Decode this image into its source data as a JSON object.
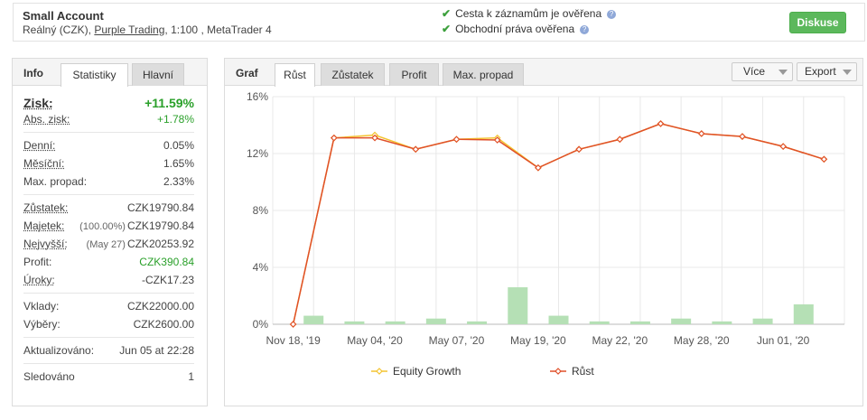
{
  "header": {
    "title": "Small Account",
    "subtitle_prefix": "Reálný (CZK), ",
    "broker": "Purple Trading",
    "subtitle_suffix": ", 1:100 , MetaTrader 4",
    "verif1": "Cesta k záznamům je ověřena",
    "verif2": "Obchodní práva ověřena",
    "discuss_label": "Diskuse",
    "accent": "#5cb85c"
  },
  "left": {
    "title": "Info",
    "tab_stats": "Statistiky",
    "tab_main": "Hlavní",
    "gain_label": "Zisk:",
    "gain_value": "+11.59%",
    "abs_gain_label": "Abs. zisk:",
    "abs_gain_value": "+1.78%",
    "daily_label": "Denní:",
    "daily_value": "0.05%",
    "monthly_label": "Měsíční:",
    "monthly_value": "1.65%",
    "drawdown_label": "Max. propad:",
    "drawdown_value": "2.33%",
    "balance_label": "Zůstatek:",
    "balance_value": "CZK19790.84",
    "equity_label": "Majetek:",
    "equity_pct": "(100.00%)",
    "equity_value": "CZK19790.84",
    "highest_label": "Nejvyšší:",
    "highest_date": "(May 27)",
    "highest_value": "CZK20253.92",
    "profit_label": "Profit:",
    "profit_value": "CZK390.84",
    "interest_label": "Úroky:",
    "interest_value": "-CZK17.23",
    "deposits_label": "Vklady:",
    "deposits_value": "CZK22000.00",
    "withdrawals_label": "Výběry:",
    "withdrawals_value": "CZK2600.00",
    "updated_label": "Aktualizováno:",
    "updated_value": "Jun 05 at 22:28",
    "tracked_label": "Sledováno",
    "tracked_value": "1"
  },
  "right": {
    "title": "Graf",
    "tabs": [
      "Růst",
      "Zůstatek",
      "Profit",
      "Max. propad"
    ],
    "more_label": "Více",
    "export_label": "Export"
  },
  "chart_data": {
    "type": "line",
    "categories": [
      "Nov 18, '19",
      "",
      "May 04, '20",
      "",
      "May 07, '20",
      "",
      "May 19, '20",
      "",
      "May 22, '20",
      "",
      "May 28, '20",
      "",
      "Jun 01, '20",
      ""
    ],
    "x_tick_labels": [
      "Nov 18, '19",
      "May 04, '20",
      "May 07, '20",
      "May 19, '20",
      "May 22, '20",
      "May 28, '20",
      "Jun 01, '20"
    ],
    "series": [
      {
        "name": "Equity Growth",
        "color": "#f4c430",
        "values": [
          0,
          13.1,
          13.3,
          12.3,
          13.0,
          13.1,
          11.0,
          12.3,
          13.0,
          14.1,
          13.4,
          13.2,
          12.5,
          11.6
        ]
      },
      {
        "name": "Růst",
        "color": "#e0502a",
        "values": [
          0,
          13.1,
          13.1,
          12.3,
          13.0,
          12.95,
          11.0,
          12.3,
          13.0,
          14.1,
          13.4,
          13.2,
          12.5,
          11.6
        ]
      }
    ],
    "bars": {
      "color": "#b5e0b5",
      "values": [
        0.6,
        0.2,
        0.2,
        0.4,
        0.2,
        2.6,
        0.6,
        0.2,
        0.2,
        0.4,
        0.2,
        0.4,
        1.4
      ]
    },
    "y_ticks": [
      "0%",
      "4%",
      "8%",
      "12%",
      "16%"
    ],
    "ylim": [
      0,
      16
    ]
  }
}
